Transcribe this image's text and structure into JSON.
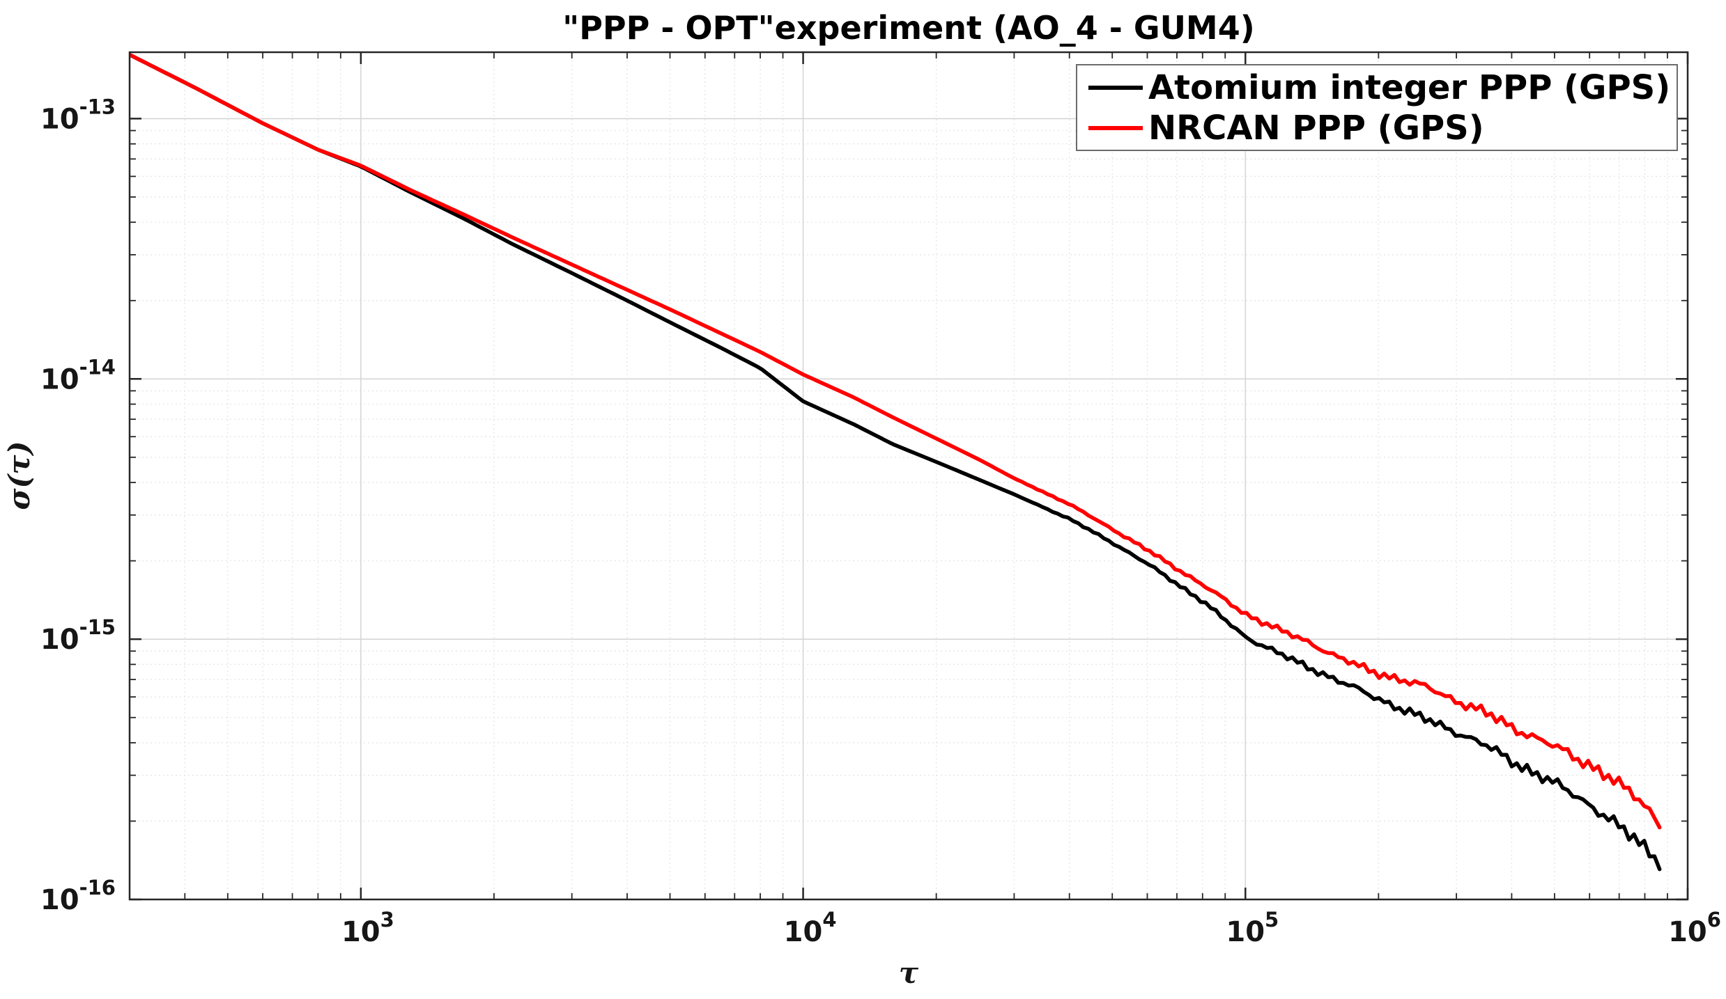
{
  "figure": {
    "title": "\"PPP - OPT\"experiment (AO_4 - GUM4)",
    "xlabel": "τ",
    "ylabel": "σ(τ)",
    "background_color": "#ffffff"
  },
  "axes": {
    "xscale": "log",
    "yscale": "log",
    "xlim": [
      300,
      1000000
    ],
    "ylim": [
      1e-16,
      1.8e-13
    ],
    "x_major_ticks": [
      {
        "value": 1000,
        "label_base": "10",
        "label_exp": "3"
      },
      {
        "value": 10000,
        "label_base": "10",
        "label_exp": "4"
      },
      {
        "value": 100000,
        "label_base": "10",
        "label_exp": "5"
      },
      {
        "value": 1000000,
        "label_base": "10",
        "label_exp": "6"
      }
    ],
    "y_major_ticks": [
      {
        "value": 1e-13,
        "label_base": "10",
        "label_exp": "-13"
      },
      {
        "value": 1e-14,
        "label_base": "10",
        "label_exp": "-14"
      },
      {
        "value": 1e-15,
        "label_base": "10",
        "label_exp": "-15"
      },
      {
        "value": 1e-16,
        "label_base": "10",
        "label_exp": "-16"
      }
    ],
    "grid": "major and minor shown",
    "grid_major_color": "#d6d6d6",
    "grid_minor_color": "#e7e7e7",
    "box_color": "#262626"
  },
  "legend": {
    "position": "northeast",
    "border_color": "#6b6b6b",
    "entries": [
      {
        "label": "Atomium integer PPP (GPS)",
        "color": "#000000"
      },
      {
        "label": "NRCAN PPP (GPS)",
        "color": "#ff0000"
      }
    ]
  },
  "chart_data": {
    "type": "line",
    "title": "\"PPP - OPT\"experiment (AO_4 - GUM4)",
    "xlabel": "τ",
    "ylabel": "σ(τ)",
    "xscale": "log",
    "yscale": "log",
    "xlim": [
      300,
      1000000
    ],
    "ylim": [
      1e-16,
      1.8e-13
    ],
    "legend_position": "northeast",
    "series": [
      {
        "name": "Atomium integer PPP (GPS)",
        "color": "#000000",
        "tau": [
          300,
          420,
          600,
          800,
          1000,
          1300,
          1700,
          2200,
          3000,
          4000,
          5000,
          6500,
          8000,
          10000,
          13000,
          16000,
          20000,
          25000,
          30000,
          40000,
          50000,
          60000,
          80000,
          100000,
          130000,
          160000,
          200000,
          250000,
          300000,
          350000,
          400000,
          480000,
          560000,
          640000,
          700000,
          760000,
          810000,
          864000
        ],
        "sigma": [
          1.76e-13,
          1.32e-13,
          9.6e-14,
          7.6e-14,
          6.55e-14,
          5.2e-14,
          4.15e-14,
          3.3e-14,
          2.55e-14,
          2e-14,
          1.65e-14,
          1.32e-14,
          1.1e-14,
          8.2e-15,
          6.7e-15,
          5.6e-15,
          4.8e-15,
          4.1e-15,
          3.6e-15,
          2.9e-15,
          2.35e-15,
          1.95e-15,
          1.4e-15,
          1.02e-15,
          8.2e-16,
          7e-16,
          5.9e-16,
          5e-16,
          4.4e-16,
          3.9e-16,
          3.4e-16,
          2.9e-16,
          2.5e-16,
          2.15e-16,
          1.9e-16,
          1.7e-16,
          1.55e-16,
          1.4e-16
        ]
      },
      {
        "name": "NRCAN PPP (GPS)",
        "color": "#ff0000",
        "tau": [
          300,
          420,
          600,
          800,
          1000,
          1300,
          1700,
          2200,
          3000,
          4000,
          5000,
          6500,
          8000,
          10000,
          13000,
          16000,
          20000,
          25000,
          30000,
          40000,
          50000,
          60000,
          80000,
          100000,
          120000,
          140000,
          160000,
          190000,
          230000,
          260000,
          300000,
          350000,
          400000,
          480000,
          560000,
          640000,
          700000,
          760000,
          810000,
          864000
        ],
        "sigma": [
          1.76e-13,
          1.32e-13,
          9.6e-14,
          7.6e-14,
          6.6e-14,
          5.3e-14,
          4.3e-14,
          3.5e-14,
          2.75e-14,
          2.2e-14,
          1.85e-14,
          1.5e-14,
          1.27e-14,
          1.04e-14,
          8.5e-15,
          7.1e-15,
          5.9e-15,
          4.9e-15,
          4.15e-15,
          3.3e-15,
          2.65e-15,
          2.2e-15,
          1.62e-15,
          1.25e-15,
          1.08e-15,
          9.7e-16,
          8.6e-16,
          7.6e-16,
          6.9e-16,
          6.5e-16,
          5.8e-16,
          5.2e-16,
          4.6e-16,
          4e-16,
          3.5e-16,
          3.1e-16,
          2.75e-16,
          2.5e-16,
          2.25e-16,
          1.95e-16
        ]
      }
    ]
  }
}
